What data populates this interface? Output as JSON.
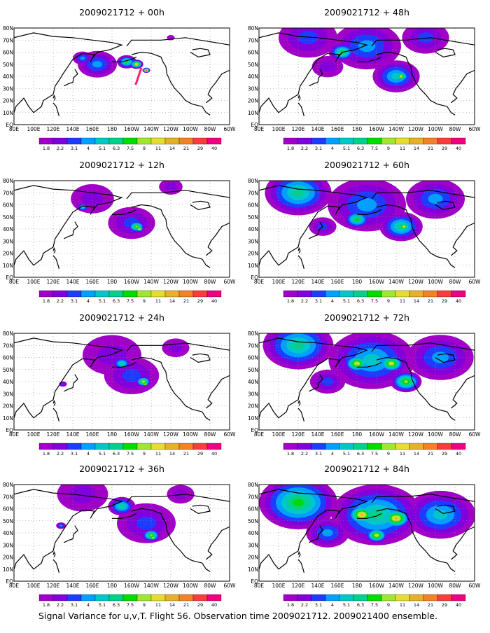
{
  "footer": "Signal Variance for u,v,T. Flight 56. Observation time 2009021712. 2009021400 ensemble.",
  "colorbar": {
    "labels": [
      "1.8",
      "2.2",
      "3.1",
      "4",
      "5.1",
      "6.3",
      "7.5",
      "9",
      "11",
      "14",
      "21",
      "29",
      "40"
    ],
    "colors": [
      "#a000c8",
      "#8200dc",
      "#1e3cff",
      "#00a0ff",
      "#00c8c8",
      "#00d28c",
      "#00dc00",
      "#a0e632",
      "#e6dc32",
      "#e6af2d",
      "#f08228",
      "#fa3c3c",
      "#f00082"
    ]
  },
  "map_axes": {
    "x_ticks": [
      "80E",
      "100E",
      "120E",
      "140E",
      "160E",
      "180",
      "160W",
      "140W",
      "120W",
      "100W",
      "80W",
      "60W"
    ],
    "y_ticks": [
      "80N",
      "70N",
      "60N",
      "50N",
      "40N",
      "30N",
      "20N",
      "10N",
      "EQ"
    ]
  },
  "chart_data": [
    {
      "type": "heatmap",
      "title": "2009021712 + 00h",
      "blobs": [
        {
          "lon": 165,
          "lat": 50,
          "r": 20,
          "level": 3
        },
        {
          "lon": 150,
          "lat": 55,
          "r": 10,
          "level": 3
        },
        {
          "lon": 195,
          "lat": 52,
          "r": 10,
          "level": 6
        },
        {
          "lon": 205,
          "lat": 50,
          "r": 7,
          "level": 9
        },
        {
          "lon": 215,
          "lat": 45,
          "r": 4,
          "level": 12
        },
        {
          "lon": 240,
          "lat": 72,
          "r": 4,
          "level": 0
        }
      ],
      "track": [
        [
          210,
          47
        ],
        [
          207,
          40
        ],
        [
          205,
          35
        ],
        [
          204,
          33
        ]
      ]
    },
    {
      "type": "heatmap",
      "title": "2009021712 + 12h",
      "blobs": [
        {
          "lon": 200,
          "lat": 45,
          "r": 24,
          "level": 2
        },
        {
          "lon": 160,
          "lat": 65,
          "r": 22,
          "level": 1
        },
        {
          "lon": 150,
          "lat": 58,
          "r": 6,
          "level": 5
        },
        {
          "lon": 205,
          "lat": 42,
          "r": 9,
          "level": 7
        },
        {
          "lon": 208,
          "lat": 40,
          "r": 4,
          "level": 10
        },
        {
          "lon": 240,
          "lat": 75,
          "r": 12,
          "level": 1
        }
      ]
    },
    {
      "type": "heatmap",
      "title": "2009021712 + 24h",
      "blobs": [
        {
          "lon": 200,
          "lat": 45,
          "r": 28,
          "level": 2
        },
        {
          "lon": 180,
          "lat": 62,
          "r": 30,
          "level": 1
        },
        {
          "lon": 190,
          "lat": 55,
          "r": 10,
          "level": 5
        },
        {
          "lon": 212,
          "lat": 40,
          "r": 8,
          "level": 8
        },
        {
          "lon": 214,
          "lat": 38,
          "r": 3,
          "level": 10
        },
        {
          "lon": 245,
          "lat": 68,
          "r": 14,
          "level": 1
        },
        {
          "lon": 130,
          "lat": 38,
          "r": 4,
          "level": 2
        }
      ]
    },
    {
      "type": "heatmap",
      "title": "2009021712 + 36h",
      "blobs": [
        {
          "lon": 150,
          "lat": 72,
          "r": 26,
          "level": 1
        },
        {
          "lon": 215,
          "lat": 48,
          "r": 30,
          "level": 2
        },
        {
          "lon": 220,
          "lat": 38,
          "r": 10,
          "level": 7
        },
        {
          "lon": 222,
          "lat": 36,
          "r": 4,
          "level": 9
        },
        {
          "lon": 190,
          "lat": 62,
          "r": 14,
          "level": 5
        },
        {
          "lon": 128,
          "lat": 46,
          "r": 5,
          "level": 3
        },
        {
          "lon": 250,
          "lat": 72,
          "r": 14,
          "level": 1
        }
      ]
    },
    {
      "type": "heatmap",
      "title": "2009021712 + 48h",
      "blobs": [
        {
          "lon": 130,
          "lat": 72,
          "r": 30,
          "level": 2
        },
        {
          "lon": 190,
          "lat": 65,
          "r": 35,
          "level": 3
        },
        {
          "lon": 220,
          "lat": 40,
          "r": 24,
          "level": 4
        },
        {
          "lon": 225,
          "lat": 40,
          "r": 8,
          "level": 8
        },
        {
          "lon": 165,
          "lat": 60,
          "r": 14,
          "level": 6
        },
        {
          "lon": 250,
          "lat": 72,
          "r": 24,
          "level": 2
        },
        {
          "lon": 150,
          "lat": 48,
          "r": 16,
          "level": 1
        }
      ]
    },
    {
      "type": "heatmap",
      "title": "2009021712 + 60h",
      "blobs": [
        {
          "lon": 120,
          "lat": 70,
          "r": 34,
          "level": 5
        },
        {
          "lon": 190,
          "lat": 60,
          "r": 40,
          "level": 3
        },
        {
          "lon": 225,
          "lat": 42,
          "r": 22,
          "level": 5
        },
        {
          "lon": 228,
          "lat": 42,
          "r": 8,
          "level": 8
        },
        {
          "lon": 180,
          "lat": 48,
          "r": 14,
          "level": 6
        },
        {
          "lon": 260,
          "lat": 65,
          "r": 30,
          "level": 3
        },
        {
          "lon": 145,
          "lat": 42,
          "r": 14,
          "level": 2
        }
      ]
    },
    {
      "type": "heatmap",
      "title": "2009021712 + 72h",
      "blobs": [
        {
          "lon": 120,
          "lat": 70,
          "r": 36,
          "level": 5
        },
        {
          "lon": 195,
          "lat": 58,
          "r": 44,
          "level": 4
        },
        {
          "lon": 180,
          "lat": 55,
          "r": 14,
          "level": 8
        },
        {
          "lon": 215,
          "lat": 55,
          "r": 14,
          "level": 8
        },
        {
          "lon": 230,
          "lat": 40,
          "r": 16,
          "level": 7
        },
        {
          "lon": 265,
          "lat": 60,
          "r": 34,
          "level": 3
        },
        {
          "lon": 150,
          "lat": 40,
          "r": 18,
          "level": 2
        }
      ]
    },
    {
      "type": "heatmap",
      "title": "2009021712 + 84h",
      "blobs": [
        {
          "lon": 120,
          "lat": 65,
          "r": 40,
          "level": 6
        },
        {
          "lon": 200,
          "lat": 55,
          "r": 46,
          "level": 5
        },
        {
          "lon": 185,
          "lat": 55,
          "r": 16,
          "level": 9
        },
        {
          "lon": 220,
          "lat": 52,
          "r": 16,
          "level": 9
        },
        {
          "lon": 200,
          "lat": 38,
          "r": 12,
          "level": 8
        },
        {
          "lon": 265,
          "lat": 55,
          "r": 36,
          "level": 4
        },
        {
          "lon": 150,
          "lat": 40,
          "r": 22,
          "level": 3
        }
      ]
    }
  ]
}
